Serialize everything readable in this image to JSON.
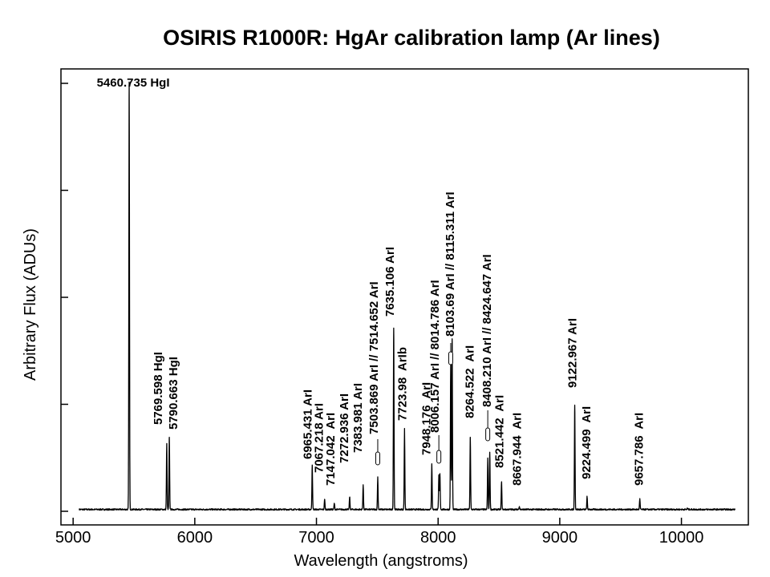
{
  "chart_data": {
    "type": "line",
    "title": "OSIRIS  R1000R:  HgAr calibration lamp (Ar lines)",
    "xlabel": "Wavelength (angstroms)",
    "ylabel": "Arbitrary Flux (ADUs)",
    "xlim": [
      4900,
      10550
    ],
    "ylim": [
      0,
      100
    ],
    "xticks": [
      "5000",
      "6000",
      "7000",
      "8000",
      "9000",
      "10000"
    ],
    "yticks": [
      0,
      25,
      50,
      75,
      100
    ],
    "grid": false,
    "spectrum_range": [
      5050,
      10440
    ],
    "peaks": [
      {
        "x": 5460.7,
        "y": 100
      },
      {
        "x": 5769.6,
        "y": 15.5
      },
      {
        "x": 5790.7,
        "y": 17
      },
      {
        "x": 6965.4,
        "y": 10.5
      },
      {
        "x": 7067.2,
        "y": 2.5
      },
      {
        "x": 7147.0,
        "y": 1.5
      },
      {
        "x": 7272.9,
        "y": 3
      },
      {
        "x": 7384.0,
        "y": 5.8
      },
      {
        "x": 7503.9,
        "y": 7.6
      },
      {
        "x": 7635.1,
        "y": 42.5
      },
      {
        "x": 7724.0,
        "y": 19
      },
      {
        "x": 7948.2,
        "y": 10.8
      },
      {
        "x": 8006.2,
        "y": 8
      },
      {
        "x": 8014.8,
        "y": 8.5
      },
      {
        "x": 8103.7,
        "y": 35
      },
      {
        "x": 8115.3,
        "y": 40
      },
      {
        "x": 8264.5,
        "y": 17
      },
      {
        "x": 8408.2,
        "y": 12
      },
      {
        "x": 8424.6,
        "y": 13.5
      },
      {
        "x": 8521.4,
        "y": 6.5
      },
      {
        "x": 8667.9,
        "y": 0.8
      },
      {
        "x": 9123.0,
        "y": 24.5
      },
      {
        "x": 9224.5,
        "y": 3
      },
      {
        "x": 9657.8,
        "y": 2.5
      },
      {
        "x": 10050,
        "y": 0.3
      }
    ],
    "annotations": [
      {
        "text": "5460.735 HgI",
        "x": 5460.7,
        "orientation": "horizontal"
      },
      {
        "text": "5769.598 HgI",
        "x": 5769.6,
        "orientation": "vertical"
      },
      {
        "text": "5790.663 HgI",
        "x": 5790.7,
        "orientation": "vertical"
      },
      {
        "text": "6965.431 ArI",
        "x": 6965.4,
        "orientation": "vertical"
      },
      {
        "text": "7067.218 ArI",
        "x": 7067.2,
        "orientation": "vertical"
      },
      {
        "text": "7147.042  ArI",
        "x": 7147.0,
        "orientation": "vertical"
      },
      {
        "text": "7272.936 ArI",
        "x": 7272.9,
        "orientation": "vertical"
      },
      {
        "text": "7383.981 ArI",
        "x": 7384.0,
        "orientation": "vertical"
      },
      {
        "text": "7503.869 ArI // 7514.652 ArI",
        "x": 7503.9,
        "orientation": "vertical"
      },
      {
        "text": "7635.106 ArI",
        "x": 7635.1,
        "orientation": "vertical"
      },
      {
        "text": "7723.98  ArIb",
        "x": 7724.0,
        "orientation": "vertical"
      },
      {
        "text": "7948.176  ArI",
        "x": 7948.2,
        "orientation": "vertical"
      },
      {
        "text": "8006.157 ArI // 8014.786 ArI",
        "x": 8006.2,
        "orientation": "vertical"
      },
      {
        "text": "8103.69 ArI // 8115.311 ArI",
        "x": 8103.7,
        "orientation": "vertical"
      },
      {
        "text": "8264.522  ArI",
        "x": 8264.5,
        "orientation": "vertical"
      },
      {
        "text": "8408.210 ArI // 8424.647 ArI",
        "x": 8408.2,
        "orientation": "vertical"
      },
      {
        "text": "8521.442  ArI",
        "x": 8521.4,
        "orientation": "vertical"
      },
      {
        "text": "8667.944  ArI",
        "x": 8667.9,
        "orientation": "vertical"
      },
      {
        "text": "9122.967 ArI",
        "x": 9123.0,
        "orientation": "vertical"
      },
      {
        "text": "9224.499  ArI",
        "x": 9224.5,
        "orientation": "vertical"
      },
      {
        "text": "9657.786  ArI",
        "x": 9657.8,
        "orientation": "vertical"
      }
    ]
  }
}
